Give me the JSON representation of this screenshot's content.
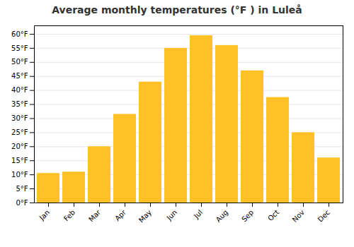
{
  "chart_data": {
    "type": "bar",
    "title": "Average monthly temperatures (°F ) in Luleå",
    "categories": [
      "Jan",
      "Feb",
      "Mar",
      "Apr",
      "May",
      "Jun",
      "Jul",
      "Aug",
      "Sep",
      "Oct",
      "Nov",
      "Dec"
    ],
    "values": [
      10.5,
      11.0,
      20.0,
      31.5,
      43.0,
      55.0,
      59.5,
      56.0,
      47.0,
      37.5,
      25.0,
      16.0
    ],
    "color": "#FFC125",
    "ylim": [
      0,
      63
    ],
    "yticks": [
      {
        "value": 0,
        "label": "0°F"
      },
      {
        "value": 5,
        "label": "5°F"
      },
      {
        "value": 10,
        "label": "10°F"
      },
      {
        "value": 15,
        "label": "15°F"
      },
      {
        "value": 20,
        "label": "20°F"
      },
      {
        "value": 25,
        "label": "25°F"
      },
      {
        "value": 30,
        "label": "30°F"
      },
      {
        "value": 35,
        "label": "35°F"
      },
      {
        "value": 40,
        "label": "40°F"
      },
      {
        "value": 45,
        "label": "45°F"
      },
      {
        "value": 50,
        "label": "50°F"
      },
      {
        "value": 55,
        "label": "55°F"
      },
      {
        "value": 60,
        "label": "60°F"
      }
    ],
    "grid": true
  }
}
